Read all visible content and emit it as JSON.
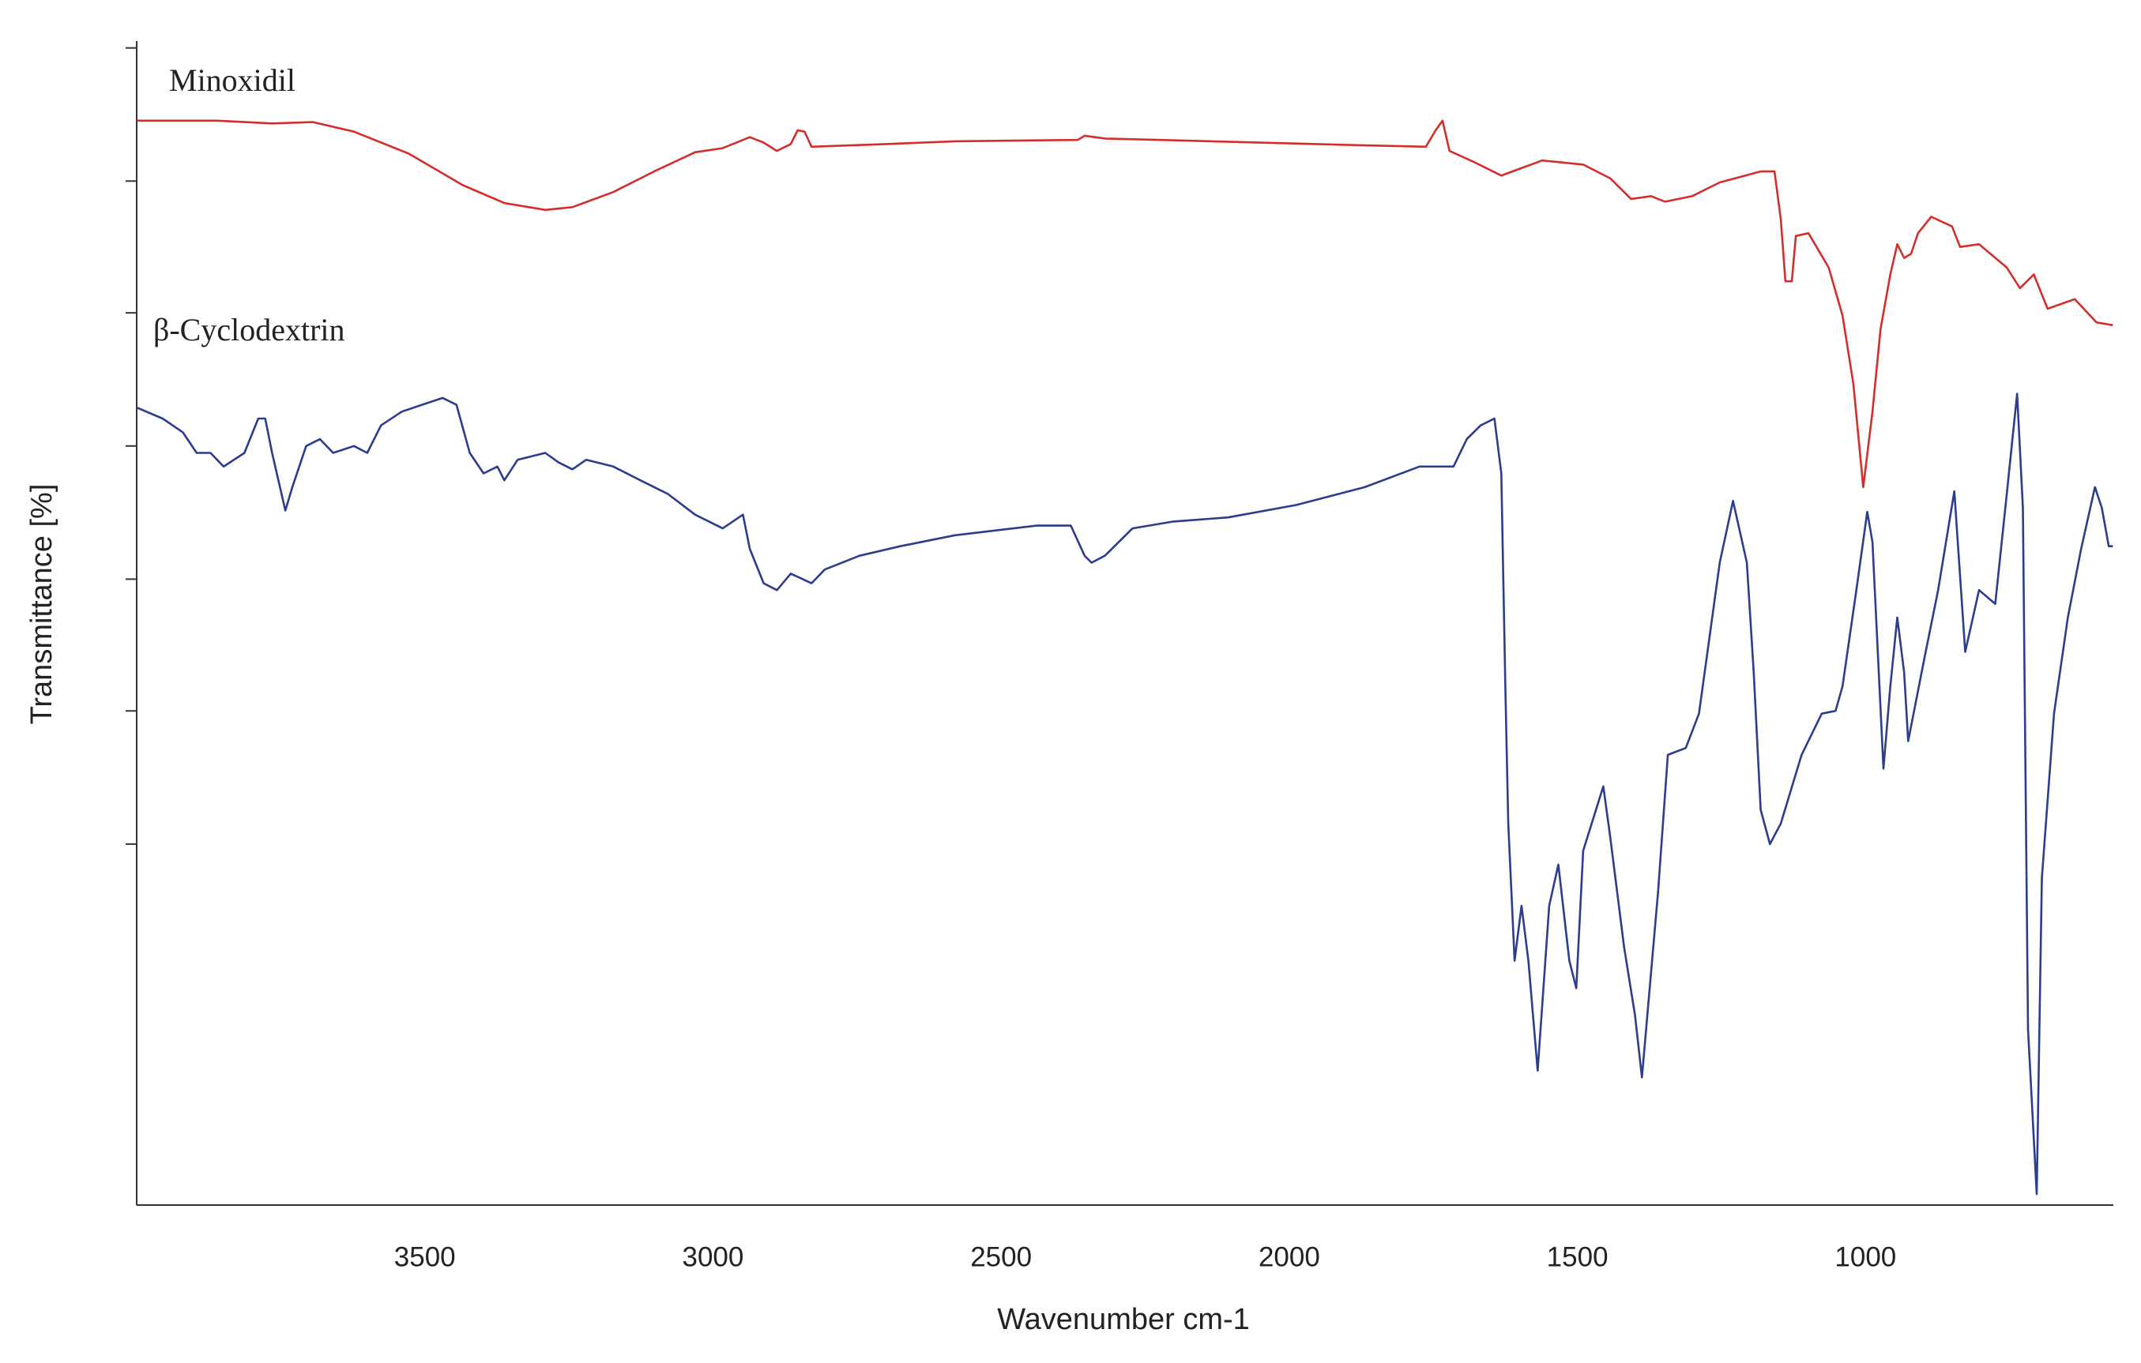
{
  "chart_data": {
    "type": "line",
    "x_label": "Wavenumber cm-1",
    "y_label": "Transmittance [%]",
    "xlim": [
      4000,
      570
    ],
    "xticks": [
      3500,
      3000,
      2500,
      2000,
      1500,
      1000
    ],
    "ylim": [
      0,
      848
    ],
    "yticks": [
      263,
      360,
      456,
      553,
      650,
      746,
      843
    ],
    "series": [
      {
        "name": "Minoxidil",
        "color": "#d42e2a",
        "x": [
          4000,
          3860,
          3765,
          3694,
          3623,
          3528,
          3434,
          3362,
          3291,
          3244,
          3173,
          3102,
          3031,
          2983,
          2936,
          2912,
          2889,
          2865,
          2853,
          2841,
          2829,
          2699,
          2580,
          2367,
          2355,
          2320,
          2225,
          1869,
          1763,
          1746,
          1734,
          1722,
          1680,
          1632,
          1561,
          1490,
          1443,
          1407,
          1372,
          1348,
          1301,
          1253,
          1182,
          1158,
          1147,
          1139,
          1128,
          1121,
          1099,
          1064,
          1040,
          1021,
          1004,
          988,
          974,
          957,
          945,
          933,
          921,
          909,
          886,
          850,
          836,
          803,
          755,
          732,
          708,
          684,
          637,
          599,
          571
        ],
        "values": [
          790,
          790,
          788,
          789,
          782,
          766,
          743,
          730,
          725,
          727,
          738,
          753,
          767,
          770,
          778,
          774,
          768,
          773,
          783,
          782,
          771,
          773,
          775,
          776,
          779,
          777,
          776,
          772,
          771,
          783,
          790,
          768,
          760,
          750,
          761,
          758,
          748,
          733,
          735,
          731,
          735,
          745,
          753,
          753,
          718,
          673,
          673,
          706,
          708,
          683,
          648,
          598,
          523,
          578,
          638,
          678,
          700,
          690,
          693,
          708,
          720,
          713,
          698,
          700,
          683,
          668,
          678,
          653,
          660,
          643,
          641
        ]
      },
      {
        "name": "β-Cyclodextrin",
        "color": "#2c3c8e",
        "x": [
          4000,
          3955,
          3920,
          3896,
          3872,
          3849,
          3813,
          3789,
          3777,
          3765,
          3742,
          3730,
          3706,
          3682,
          3659,
          3623,
          3600,
          3576,
          3540,
          3505,
          3469,
          3445,
          3422,
          3398,
          3374,
          3362,
          3339,
          3291,
          3268,
          3244,
          3220,
          3173,
          3126,
          3078,
          3031,
          2983,
          2948,
          2936,
          2912,
          2889,
          2865,
          2829,
          2806,
          2746,
          2675,
          2580,
          2438,
          2379,
          2355,
          2343,
          2320,
          2272,
          2201,
          2106,
          1988,
          1869,
          1774,
          1715,
          1692,
          1668,
          1644,
          1632,
          1625,
          1620,
          1609,
          1597,
          1585,
          1569,
          1549,
          1533,
          1514,
          1502,
          1490,
          1455,
          1443,
          1419,
          1400,
          1388,
          1360,
          1343,
          1312,
          1289,
          1253,
          1230,
          1206,
          1194,
          1182,
          1166,
          1147,
          1111,
          1076,
          1052,
          1040,
          1016,
          997,
          988,
          969,
          957,
          945,
          933,
          926,
          898,
          874,
          846,
          827,
          803,
          775,
          755,
          737,
          727,
          718,
          703,
          694,
          673,
          649,
          626,
          602,
          590,
          578,
          571
        ],
        "values": [
          581,
          573,
          563,
          548,
          548,
          538,
          548,
          573,
          573,
          548,
          506,
          523,
          553,
          558,
          548,
          553,
          548,
          568,
          578,
          583,
          588,
          583,
          548,
          533,
          538,
          528,
          543,
          548,
          541,
          536,
          543,
          538,
          528,
          518,
          503,
          493,
          503,
          478,
          453,
          448,
          460,
          453,
          463,
          473,
          480,
          488,
          495,
          495,
          473,
          468,
          473,
          493,
          498,
          501,
          510,
          523,
          538,
          538,
          558,
          568,
          573,
          533,
          378,
          278,
          178,
          218,
          178,
          98,
          218,
          248,
          178,
          158,
          258,
          305,
          268,
          188,
          138,
          93,
          228,
          328,
          333,
          358,
          468,
          513,
          468,
          388,
          288,
          263,
          278,
          328,
          358,
          360,
          378,
          448,
          505,
          483,
          318,
          378,
          428,
          388,
          338,
          398,
          448,
          520,
          403,
          448,
          438,
          518,
          591,
          508,
          128,
          8,
          238,
          358,
          428,
          478,
          523,
          508,
          480,
          480
        ]
      }
    ]
  }
}
